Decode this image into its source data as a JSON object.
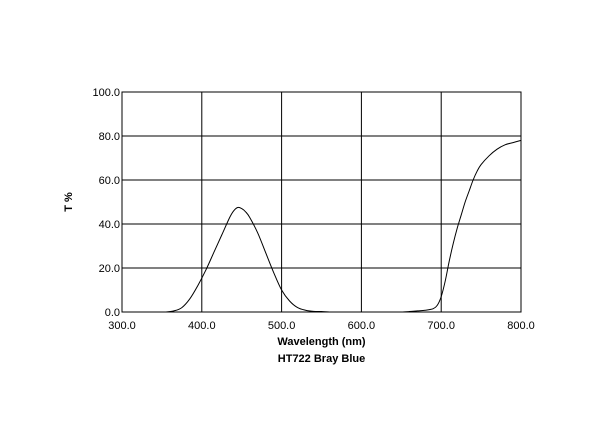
{
  "chart_data": {
    "type": "line",
    "title": "HT722 Bray Blue",
    "xlabel": "Wavelength (nm)",
    "ylabel": "T %",
    "xlim": [
      300,
      800
    ],
    "ylim": [
      0,
      100
    ],
    "grid": true,
    "x_ticks": [
      300,
      400,
      500,
      600,
      700,
      800
    ],
    "y_ticks": [
      0,
      20,
      40,
      60,
      80,
      100
    ],
    "x_tick_labels": [
      "300.0",
      "400.0",
      "500.0",
      "600.0",
      "700.0",
      "800.0"
    ],
    "y_tick_labels": [
      "0.0",
      "20.0",
      "40.0",
      "60.0",
      "80.0",
      "100.0"
    ],
    "series": [
      {
        "color": "#000000",
        "x": [
          300,
          340,
          355,
          365,
          375,
          385,
          395,
          405,
          415,
          425,
          435,
          440,
          445,
          450,
          455,
          460,
          470,
          480,
          490,
          500,
          510,
          520,
          530,
          540,
          550,
          560,
          570,
          580,
          600,
          620,
          640,
          650,
          660,
          670,
          680,
          690,
          695,
          700,
          705,
          710,
          715,
          720,
          725,
          730,
          735,
          740,
          745,
          750,
          760,
          770,
          780,
          790,
          800
        ],
        "y": [
          0,
          0,
          0,
          0.5,
          2,
          6,
          12,
          19,
          27,
          35,
          43,
          46,
          47.5,
          47,
          45.5,
          43,
          36,
          27,
          18,
          10,
          5,
          2,
          0.8,
          0.3,
          0.2,
          0,
          0,
          0,
          0,
          0,
          0,
          0,
          0.2,
          0.5,
          0.8,
          1.5,
          3,
          7,
          14,
          23,
          31,
          38,
          44,
          50,
          55,
          60,
          64,
          67,
          71,
          74,
          76,
          77,
          78
        ]
      }
    ]
  }
}
